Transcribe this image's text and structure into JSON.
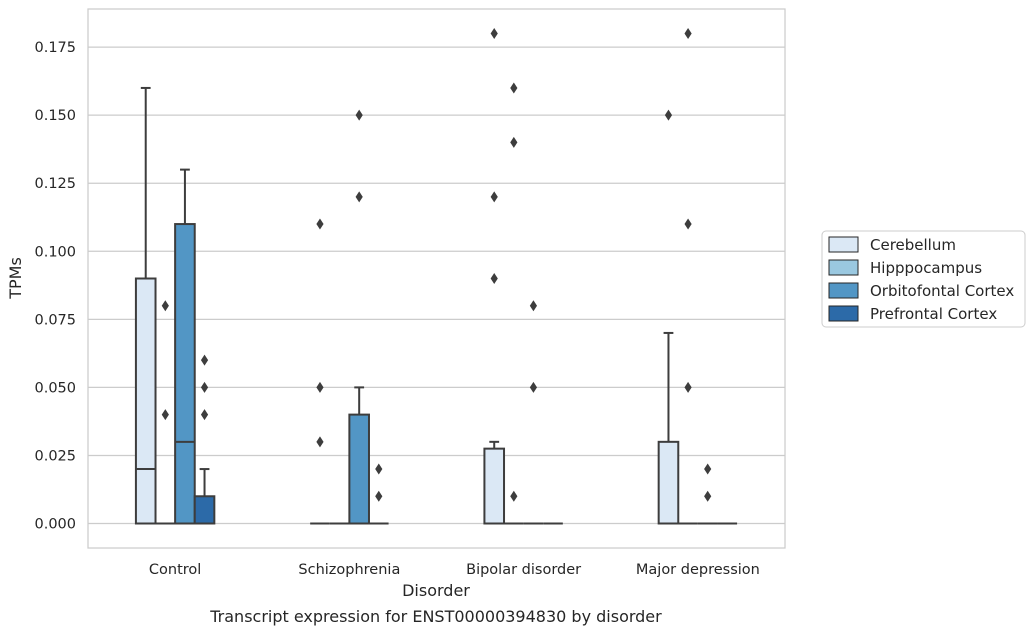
{
  "chart_data": {
    "type": "box",
    "xlabel": "Disorder",
    "ylabel": "TPMs",
    "caption": "Transcript expression for ENST00000394830 by disorder",
    "categories": [
      "Control",
      "Schizophrenia",
      "Bipolar disorder",
      "Major depression"
    ],
    "yticks": [
      "0.000",
      "0.025",
      "0.050",
      "0.075",
      "0.100",
      "0.125",
      "0.150",
      "0.175"
    ],
    "ylim": [
      -0.009,
      0.189
    ],
    "grid": true,
    "legend_position": "right",
    "series": [
      {
        "name": "Cerebellum",
        "color": "#dbe8f5",
        "boxes": [
          {
            "q1": 0.0,
            "median": 0.02,
            "q3": 0.09,
            "whisker_low": 0.0,
            "whisker_high": 0.16,
            "outliers": []
          },
          {
            "q1": 0.0,
            "median": 0.0,
            "q3": 0.0,
            "whisker_low": 0.0,
            "whisker_high": 0.0,
            "outliers": [
              0.03,
              0.05,
              0.11
            ]
          },
          {
            "q1": 0.0,
            "median": 0.0,
            "q3": 0.0275,
            "whisker_low": 0.0,
            "whisker_high": 0.03,
            "outliers": [
              0.09,
              0.12,
              0.18
            ]
          },
          {
            "q1": 0.0,
            "median": 0.0,
            "q3": 0.03,
            "whisker_low": 0.0,
            "whisker_high": 0.07,
            "outliers": [
              0.15
            ]
          }
        ]
      },
      {
        "name": "Hipppocampus",
        "color": "#9ac8e0",
        "boxes": [
          {
            "q1": 0.0,
            "median": 0.0,
            "q3": 0.0,
            "whisker_low": 0.0,
            "whisker_high": 0.0,
            "outliers": [
              0.04,
              0.08
            ]
          },
          {
            "q1": 0.0,
            "median": 0.0,
            "q3": 0.0,
            "whisker_low": 0.0,
            "whisker_high": 0.0,
            "outliers": []
          },
          {
            "q1": 0.0,
            "median": 0.0,
            "q3": 0.0,
            "whisker_low": 0.0,
            "whisker_high": 0.0,
            "outliers": [
              0.01,
              0.14,
              0.16
            ]
          },
          {
            "q1": 0.0,
            "median": 0.0,
            "q3": 0.0,
            "whisker_low": 0.0,
            "whisker_high": 0.0,
            "outliers": [
              0.05,
              0.11,
              0.18
            ]
          }
        ]
      },
      {
        "name": "Orbitofontal Cortex",
        "color": "#5296c5",
        "boxes": [
          {
            "q1": 0.0,
            "median": 0.03,
            "q3": 0.11,
            "whisker_low": 0.0,
            "whisker_high": 0.13,
            "outliers": []
          },
          {
            "q1": 0.0,
            "median": 0.0,
            "q3": 0.04,
            "whisker_low": 0.0,
            "whisker_high": 0.05,
            "outliers": [
              0.12,
              0.15
            ]
          },
          {
            "q1": 0.0,
            "median": 0.0,
            "q3": 0.0,
            "whisker_low": 0.0,
            "whisker_high": 0.0,
            "outliers": [
              0.05,
              0.08
            ]
          },
          {
            "q1": 0.0,
            "median": 0.0,
            "q3": 0.0,
            "whisker_low": 0.0,
            "whisker_high": 0.0,
            "outliers": [
              0.01,
              0.02
            ]
          }
        ]
      },
      {
        "name": "Prefrontal Cortex",
        "color": "#2c6aa8",
        "boxes": [
          {
            "q1": 0.0,
            "median": 0.0,
            "q3": 0.01,
            "whisker_low": 0.0,
            "whisker_high": 0.02,
            "outliers": [
              0.04,
              0.05,
              0.06
            ]
          },
          {
            "q1": 0.0,
            "median": 0.0,
            "q3": 0.0,
            "whisker_low": 0.0,
            "whisker_high": 0.0,
            "outliers": [
              0.01,
              0.02
            ]
          },
          {
            "q1": 0.0,
            "median": 0.0,
            "q3": 0.0,
            "whisker_low": 0.0,
            "whisker_high": 0.0,
            "outliers": []
          },
          {
            "q1": 0.0,
            "median": 0.0,
            "q3": 0.0,
            "whisker_low": 0.0,
            "whisker_high": 0.0,
            "outliers": []
          }
        ]
      }
    ]
  }
}
